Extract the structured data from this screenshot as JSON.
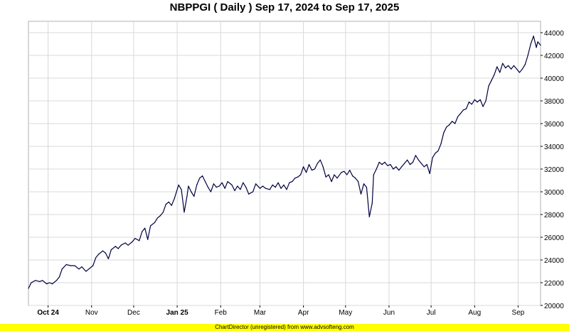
{
  "chart_data": {
    "type": "line",
    "title": "NBPPGI ( Daily ) Sep 17, 2024 to Sep 17, 2025",
    "xlabel": "",
    "ylabel": "",
    "ylim": [
      20000,
      45000
    ],
    "y_ticks": [
      "20000",
      "22000",
      "24000",
      "26000",
      "28000",
      "30000",
      "32000",
      "34000",
      "36000",
      "38000",
      "40000",
      "42000",
      "44000"
    ],
    "x_ticks": [
      {
        "label": "Oct 24",
        "date": "2024-10-01",
        "bold": true
      },
      {
        "label": "Nov",
        "date": "2024-11-01",
        "bold": false
      },
      {
        "label": "Dec",
        "date": "2024-12-01",
        "bold": false
      },
      {
        "label": "Jan 25",
        "date": "2025-01-01",
        "bold": true
      },
      {
        "label": "Feb",
        "date": "2025-02-01",
        "bold": false
      },
      {
        "label": "Mar",
        "date": "2025-03-01",
        "bold": false
      },
      {
        "label": "Apr",
        "date": "2025-04-01",
        "bold": false
      },
      {
        "label": "May",
        "date": "2025-05-01",
        "bold": false
      },
      {
        "label": "Jun",
        "date": "2025-06-01",
        "bold": false
      },
      {
        "label": "Jul",
        "date": "2025-07-01",
        "bold": false
      },
      {
        "label": "Aug",
        "date": "2025-08-01",
        "bold": false
      },
      {
        "label": "Sep",
        "date": "2025-09-01",
        "bold": false
      }
    ],
    "x_range": [
      "2024-09-17",
      "2025-09-17"
    ],
    "grid": true,
    "line_color": "#000040",
    "series": [
      {
        "name": "",
        "points": [
          [
            "2024-09-17",
            21500
          ],
          [
            "2024-09-19",
            22000
          ],
          [
            "2024-09-22",
            22200
          ],
          [
            "2024-09-25",
            22100
          ],
          [
            "2024-09-27",
            22200
          ],
          [
            "2024-09-30",
            21900
          ],
          [
            "2024-10-02",
            22000
          ],
          [
            "2024-10-04",
            21900
          ],
          [
            "2024-10-07",
            22200
          ],
          [
            "2024-10-09",
            22500
          ],
          [
            "2024-10-11",
            23200
          ],
          [
            "2024-10-14",
            23600
          ],
          [
            "2024-10-17",
            23500
          ],
          [
            "2024-10-20",
            23500
          ],
          [
            "2024-10-23",
            23200
          ],
          [
            "2024-10-25",
            23400
          ],
          [
            "2024-10-28",
            23000
          ],
          [
            "2024-10-31",
            23300
          ],
          [
            "2024-11-02",
            23500
          ],
          [
            "2024-11-04",
            24200
          ],
          [
            "2024-11-06",
            24500
          ],
          [
            "2024-11-09",
            24800
          ],
          [
            "2024-11-11",
            24600
          ],
          [
            "2024-11-13",
            24100
          ],
          [
            "2024-11-15",
            24900
          ],
          [
            "2024-11-18",
            25200
          ],
          [
            "2024-11-20",
            25000
          ],
          [
            "2024-11-22",
            25300
          ],
          [
            "2024-11-25",
            25500
          ],
          [
            "2024-11-27",
            25300
          ],
          [
            "2024-11-30",
            25600
          ],
          [
            "2024-12-02",
            25900
          ],
          [
            "2024-12-05",
            25700
          ],
          [
            "2024-12-07",
            26500
          ],
          [
            "2024-12-09",
            26800
          ],
          [
            "2024-12-11",
            25800
          ],
          [
            "2024-12-13",
            27000
          ],
          [
            "2024-12-16",
            27300
          ],
          [
            "2024-12-18",
            27700
          ],
          [
            "2024-12-20",
            27900
          ],
          [
            "2024-12-22",
            28200
          ],
          [
            "2024-12-24",
            28900
          ],
          [
            "2024-12-26",
            29100
          ],
          [
            "2024-12-28",
            28800
          ],
          [
            "2024-12-30",
            29400
          ],
          [
            "2025-01-02",
            30600
          ],
          [
            "2025-01-04",
            30200
          ],
          [
            "2025-01-06",
            28200
          ],
          [
            "2025-01-08",
            29600
          ],
          [
            "2025-01-09",
            30500
          ],
          [
            "2025-01-11",
            30000
          ],
          [
            "2025-01-13",
            29600
          ],
          [
            "2025-01-15",
            30600
          ],
          [
            "2025-01-17",
            31200
          ],
          [
            "2025-01-19",
            31400
          ],
          [
            "2025-01-21",
            30900
          ],
          [
            "2025-01-23",
            30400
          ],
          [
            "2025-01-25",
            30000
          ],
          [
            "2025-01-27",
            30700
          ],
          [
            "2025-01-29",
            30400
          ],
          [
            "2025-01-31",
            30500
          ],
          [
            "2025-02-02",
            30800
          ],
          [
            "2025-02-04",
            30300
          ],
          [
            "2025-02-06",
            30900
          ],
          [
            "2025-02-09",
            30600
          ],
          [
            "2025-02-11",
            30100
          ],
          [
            "2025-02-13",
            30500
          ],
          [
            "2025-02-15",
            30200
          ],
          [
            "2025-02-17",
            30800
          ],
          [
            "2025-02-19",
            30400
          ],
          [
            "2025-02-21",
            29800
          ],
          [
            "2025-02-24",
            30000
          ],
          [
            "2025-02-26",
            30700
          ],
          [
            "2025-03-01",
            30300
          ],
          [
            "2025-03-03",
            30500
          ],
          [
            "2025-03-05",
            30300
          ],
          [
            "2025-03-08",
            30200
          ],
          [
            "2025-03-10",
            30600
          ],
          [
            "2025-03-12",
            30400
          ],
          [
            "2025-03-14",
            30800
          ],
          [
            "2025-03-16",
            30300
          ],
          [
            "2025-03-18",
            30600
          ],
          [
            "2025-03-20",
            30200
          ],
          [
            "2025-03-22",
            30800
          ],
          [
            "2025-03-24",
            30900
          ],
          [
            "2025-03-26",
            31200
          ],
          [
            "2025-03-28",
            31300
          ],
          [
            "2025-03-30",
            31500
          ],
          [
            "2025-04-01",
            32200
          ],
          [
            "2025-04-03",
            31700
          ],
          [
            "2025-04-05",
            32400
          ],
          [
            "2025-04-07",
            31900
          ],
          [
            "2025-04-09",
            32000
          ],
          [
            "2025-04-11",
            32500
          ],
          [
            "2025-04-13",
            32800
          ],
          [
            "2025-04-15",
            32200
          ],
          [
            "2025-04-17",
            31300
          ],
          [
            "2025-04-19",
            31500
          ],
          [
            "2025-04-21",
            30900
          ],
          [
            "2025-04-23",
            31500
          ],
          [
            "2025-04-25",
            31200
          ],
          [
            "2025-04-28",
            31700
          ],
          [
            "2025-04-30",
            31800
          ],
          [
            "2025-05-02",
            31500
          ],
          [
            "2025-05-04",
            31900
          ],
          [
            "2025-05-06",
            31400
          ],
          [
            "2025-05-08",
            31200
          ],
          [
            "2025-05-10",
            30900
          ],
          [
            "2025-05-12",
            29800
          ],
          [
            "2025-05-14",
            30700
          ],
          [
            "2025-05-16",
            30400
          ],
          [
            "2025-05-18",
            27800
          ],
          [
            "2025-05-20",
            29000
          ],
          [
            "2025-05-21",
            31500
          ],
          [
            "2025-05-23",
            32000
          ],
          [
            "2025-05-25",
            32600
          ],
          [
            "2025-05-27",
            32400
          ],
          [
            "2025-05-29",
            32600
          ],
          [
            "2025-05-31",
            32300
          ],
          [
            "2025-06-02",
            32400
          ],
          [
            "2025-06-04",
            32000
          ],
          [
            "2025-06-06",
            32200
          ],
          [
            "2025-06-08",
            31900
          ],
          [
            "2025-06-10",
            32200
          ],
          [
            "2025-06-12",
            32500
          ],
          [
            "2025-06-14",
            32800
          ],
          [
            "2025-06-16",
            32400
          ],
          [
            "2025-06-18",
            32600
          ],
          [
            "2025-06-20",
            33200
          ],
          [
            "2025-06-22",
            32800
          ],
          [
            "2025-06-24",
            32500
          ],
          [
            "2025-06-26",
            32200
          ],
          [
            "2025-06-28",
            32400
          ],
          [
            "2025-06-30",
            31600
          ],
          [
            "2025-07-02",
            33000
          ],
          [
            "2025-07-04",
            33400
          ],
          [
            "2025-07-06",
            33600
          ],
          [
            "2025-07-08",
            34200
          ],
          [
            "2025-07-10",
            35200
          ],
          [
            "2025-07-12",
            35700
          ],
          [
            "2025-07-14",
            35900
          ],
          [
            "2025-07-16",
            36200
          ],
          [
            "2025-07-18",
            36000
          ],
          [
            "2025-07-20",
            36600
          ],
          [
            "2025-07-22",
            36900
          ],
          [
            "2025-07-24",
            37200
          ],
          [
            "2025-07-26",
            37300
          ],
          [
            "2025-07-28",
            37900
          ],
          [
            "2025-07-30",
            37700
          ],
          [
            "2025-08-01",
            38100
          ],
          [
            "2025-08-03",
            37900
          ],
          [
            "2025-08-05",
            38100
          ],
          [
            "2025-08-07",
            37500
          ],
          [
            "2025-08-09",
            38000
          ],
          [
            "2025-08-11",
            39300
          ],
          [
            "2025-08-13",
            39800
          ],
          [
            "2025-08-15",
            40300
          ],
          [
            "2025-08-17",
            41000
          ],
          [
            "2025-08-19",
            40500
          ],
          [
            "2025-08-21",
            41300
          ],
          [
            "2025-08-23",
            40900
          ],
          [
            "2025-08-25",
            41100
          ],
          [
            "2025-08-27",
            40800
          ],
          [
            "2025-08-29",
            41100
          ],
          [
            "2025-08-31",
            40800
          ],
          [
            "2025-09-02",
            40500
          ],
          [
            "2025-09-04",
            40800
          ],
          [
            "2025-09-06",
            41200
          ],
          [
            "2025-09-08",
            42000
          ],
          [
            "2025-09-10",
            43000
          ],
          [
            "2025-09-12",
            43700
          ],
          [
            "2025-09-14",
            42700
          ],
          [
            "2025-09-15",
            43200
          ],
          [
            "2025-09-17",
            42900
          ]
        ]
      }
    ]
  },
  "footer": {
    "text": "ChartDirector (unregistered) from www.advsofteng.com"
  }
}
